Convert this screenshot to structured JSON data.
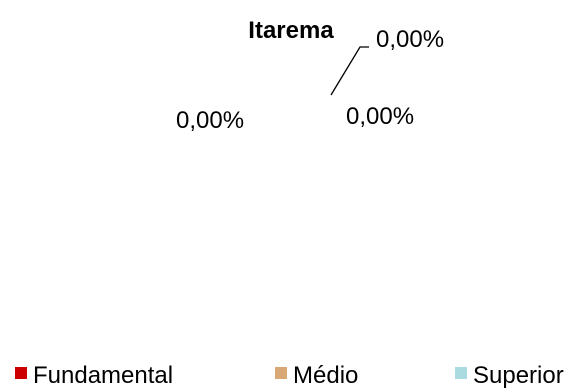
{
  "chart_data": {
    "type": "pie",
    "title": "Itarema",
    "categories": [
      "Fundamental",
      "Médio",
      "Superior"
    ],
    "values": [
      0.0,
      0.0,
      0.0
    ],
    "data_labels": [
      "0,00%",
      "0,00%",
      "0,00%"
    ],
    "series": [
      {
        "values": [
          0.0,
          0.0,
          0.0
        ]
      }
    ],
    "colors": [
      "#cc0000",
      "#d9a877",
      "#a9dbe0"
    ],
    "legend": {
      "placement": "bottom",
      "entries": [
        "Fundamental",
        "Médio",
        "Superior"
      ]
    }
  }
}
